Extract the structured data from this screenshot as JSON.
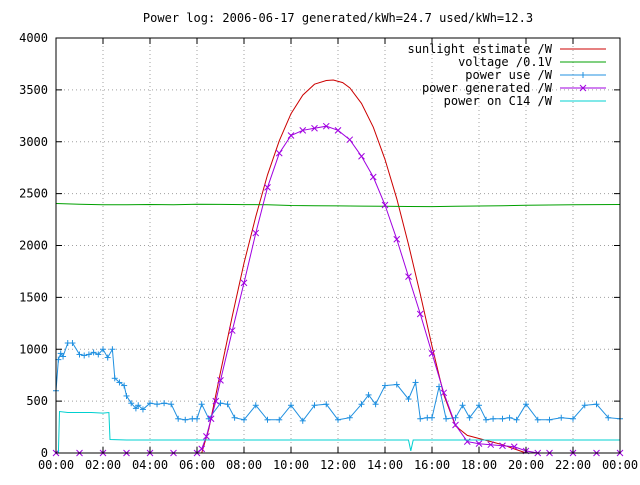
{
  "chart_data": {
    "type": "line",
    "title": "Power log: 2006-06-17 generated/kWh=24.7 used/kWh=12.3",
    "xlabel": "",
    "ylabel": "",
    "x_range_hours": [
      0,
      24
    ],
    "ylim": [
      0,
      4000
    ],
    "x_ticks": [
      "00:00",
      "02:00",
      "04:00",
      "06:00",
      "08:00",
      "10:00",
      "12:00",
      "14:00",
      "16:00",
      "18:00",
      "20:00",
      "22:00",
      "00:00"
    ],
    "y_ticks": [
      "0",
      "500",
      "1000",
      "1500",
      "2000",
      "2500",
      "3000",
      "3500",
      "4000"
    ],
    "grid": true,
    "legend_position": "top-right",
    "series": [
      {
        "name": "sunlight estimate /W",
        "color": "#cc0000",
        "marker": "none",
        "x": [
          6.2,
          6.5,
          7.0,
          7.5,
          8.0,
          8.5,
          9.0,
          9.5,
          10.0,
          10.5,
          11.0,
          11.5,
          11.8,
          12.2,
          12.5,
          13.0,
          13.5,
          14.0,
          14.5,
          15.0,
          15.5,
          16.0,
          16.5,
          17.0,
          17.5,
          18.0,
          18.5,
          19.0,
          19.5,
          20.0,
          24.0
        ],
        "y": [
          0,
          230,
          780,
          1320,
          1830,
          2280,
          2680,
          3010,
          3270,
          3450,
          3555,
          3590,
          3595,
          3570,
          3520,
          3370,
          3140,
          2830,
          2450,
          2010,
          1530,
          1030,
          560,
          260,
          170,
          140,
          110,
          80,
          40,
          0,
          0
        ]
      },
      {
        "name": "voltage /0.1V",
        "color": "#00a000",
        "marker": "none",
        "x": [
          0.0,
          1.0,
          2.0,
          3.0,
          4.0,
          5.0,
          6.0,
          7.0,
          8.0,
          9.0,
          10.0,
          11.0,
          12.0,
          13.0,
          14.0,
          15.0,
          16.0,
          17.0,
          18.0,
          19.0,
          20.0,
          21.0,
          22.0,
          23.0,
          24.0
        ],
        "y": [
          2405,
          2398,
          2392,
          2392,
          2395,
          2392,
          2398,
          2396,
          2394,
          2393,
          2386,
          2384,
          2382,
          2380,
          2378,
          2376,
          2375,
          2378,
          2381,
          2384,
          2387,
          2390,
          2392,
          2394,
          2395
        ]
      },
      {
        "name": "power use /W",
        "color": "#2090e0",
        "marker": "plus",
        "x": [
          0.0,
          0.1,
          0.2,
          0.3,
          0.5,
          0.7,
          1.0,
          1.2,
          1.4,
          1.6,
          1.8,
          2.0,
          2.2,
          2.4,
          2.5,
          2.7,
          2.9,
          3.0,
          3.2,
          3.4,
          3.5,
          3.7,
          4.0,
          4.3,
          4.6,
          4.9,
          5.2,
          5.5,
          5.8,
          6.0,
          6.2,
          6.5,
          7.0,
          7.3,
          7.6,
          8.0,
          8.5,
          9.0,
          9.5,
          10.0,
          10.5,
          11.0,
          11.5,
          12.0,
          12.5,
          13.0,
          13.3,
          13.6,
          14.0,
          14.5,
          15.0,
          15.3,
          15.5,
          15.8,
          16.0,
          16.3,
          16.6,
          17.0,
          17.3,
          17.6,
          18.0,
          18.3,
          18.6,
          19.0,
          19.3,
          19.6,
          20.0,
          20.5,
          21.0,
          21.5,
          22.0,
          22.5,
          23.0,
          23.5,
          24.0
        ],
        "y": [
          600,
          900,
          960,
          930,
          1060,
          1060,
          950,
          940,
          950,
          970,
          950,
          1000,
          920,
          1000,
          720,
          680,
          650,
          550,
          480,
          430,
          460,
          420,
          480,
          470,
          480,
          470,
          330,
          320,
          330,
          330,
          470,
          330,
          480,
          470,
          340,
          320,
          460,
          320,
          320,
          460,
          310,
          460,
          470,
          320,
          340,
          470,
          560,
          470,
          650,
          660,
          520,
          680,
          330,
          340,
          340,
          640,
          330,
          340,
          460,
          340,
          460,
          320,
          330,
          330,
          340,
          320,
          470,
          320,
          320,
          340,
          330,
          460,
          470,
          340,
          330
        ]
      },
      {
        "name": "power generated /W",
        "color": "#a000e0",
        "marker": "x",
        "x": [
          0.0,
          1.0,
          2.0,
          3.0,
          4.0,
          5.0,
          6.0,
          6.2,
          6.4,
          6.6,
          6.8,
          7.0,
          7.5,
          8.0,
          8.5,
          9.0,
          9.5,
          10.0,
          10.5,
          11.0,
          11.5,
          12.0,
          12.5,
          13.0,
          13.5,
          14.0,
          14.5,
          15.0,
          15.5,
          16.0,
          16.5,
          17.0,
          17.5,
          18.0,
          18.5,
          19.0,
          19.5,
          20.0,
          20.5,
          21.0,
          22.0,
          23.0,
          24.0
        ],
        "y": [
          0,
          0,
          0,
          0,
          0,
          0,
          0,
          40,
          160,
          330,
          500,
          700,
          1180,
          1640,
          2120,
          2560,
          2890,
          3060,
          3110,
          3130,
          3150,
          3110,
          3020,
          2860,
          2660,
          2390,
          2060,
          1700,
          1340,
          960,
          580,
          270,
          110,
          90,
          80,
          70,
          60,
          20,
          0,
          0,
          0,
          0,
          0
        ]
      },
      {
        "name": "power on C14 /W",
        "color": "#00d0d0",
        "marker": "none",
        "x": [
          0.0,
          0.1,
          0.15,
          0.5,
          1.0,
          1.5,
          2.0,
          2.25,
          2.3,
          3.0,
          4.0,
          6.0,
          8.0,
          10.0,
          12.0,
          14.0,
          15.0,
          15.1,
          15.2,
          16.0,
          18.0,
          20.0,
          22.0,
          24.0
        ],
        "y": [
          0,
          0,
          400,
          390,
          390,
          390,
          385,
          390,
          130,
          125,
          125,
          125,
          125,
          125,
          125,
          125,
          125,
          20,
          125,
          125,
          125,
          125,
          125,
          125
        ]
      }
    ]
  }
}
